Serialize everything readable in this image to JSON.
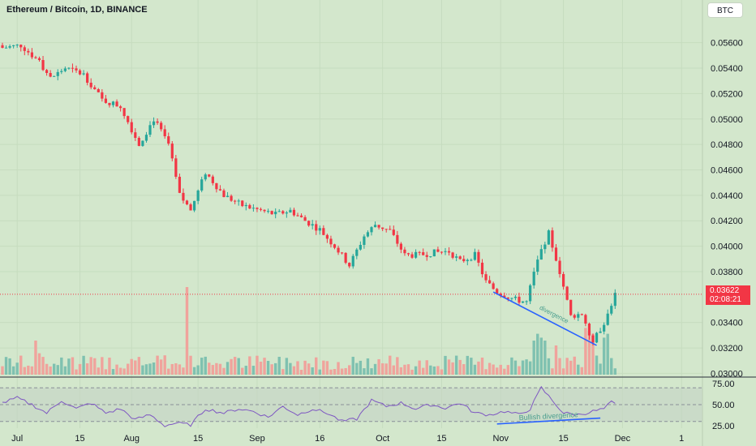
{
  "header": {
    "title": "Ethereum / Bitcoin, 1D, BINANCE",
    "currency_button": "BTC"
  },
  "last_price": {
    "price": "0.03622",
    "countdown": "02:08:21",
    "value": 0.03622
  },
  "annotations": {
    "price_divergence": "divergence",
    "rsi_divergence": "Bullish divergence"
  },
  "colors": {
    "up": "#26a69a",
    "down": "#f23645",
    "up_vol": "#7fc1b0",
    "down_vol": "#f0a39c",
    "rsi": "#7e57c2",
    "divergence_line": "#2962ff",
    "background": "#d3e7cc"
  },
  "chart_data": [
    {
      "type": "candlestick",
      "title": "Ethereum / Bitcoin, 1D, BINANCE",
      "x_axis_labels": [
        "Jul",
        "15",
        "Aug",
        "15",
        "Sep",
        "16",
        "Oct",
        "15",
        "Nov",
        "15",
        "Dec",
        "1"
      ],
      "y_axis_labels": [
        "0.05600",
        "0.05400",
        "0.05200",
        "0.05000",
        "0.04800",
        "0.04600",
        "0.04400",
        "0.04200",
        "0.04000",
        "0.03800",
        "0.03400",
        "0.03200",
        "0.03000"
      ],
      "ylim": [
        0.0299,
        0.0577
      ],
      "dates": [
        "2022-06-27",
        "2022-11-23"
      ],
      "close_waypoints": [
        [
          0,
          0.0556
        ],
        [
          5,
          0.0558
        ],
        [
          10,
          0.0545
        ],
        [
          13,
          0.0532
        ],
        [
          17,
          0.054
        ],
        [
          22,
          0.0535
        ],
        [
          27,
          0.0515
        ],
        [
          32,
          0.051
        ],
        [
          37,
          0.048
        ],
        [
          41,
          0.05
        ],
        [
          45,
          0.048
        ],
        [
          48,
          0.044
        ],
        [
          51,
          0.0428
        ],
        [
          55,
          0.0458
        ],
        [
          60,
          0.044
        ],
        [
          65,
          0.0432
        ],
        [
          70,
          0.0428
        ],
        [
          74,
          0.0425
        ],
        [
          78,
          0.0428
        ],
        [
          82,
          0.042
        ],
        [
          86,
          0.0413
        ],
        [
          90,
          0.04
        ],
        [
          94,
          0.0385
        ],
        [
          98,
          0.0408
        ],
        [
          101,
          0.0417
        ],
        [
          105,
          0.0412
        ],
        [
          109,
          0.0393
        ],
        [
          113,
          0.0393
        ],
        [
          117,
          0.0395
        ],
        [
          121,
          0.0396
        ],
        [
          124,
          0.0388
        ],
        [
          128,
          0.0393
        ],
        [
          131,
          0.0372
        ],
        [
          134,
          0.0364
        ],
        [
          139,
          0.0358
        ],
        [
          142,
          0.0356
        ],
        [
          145,
          0.039
        ],
        [
          148,
          0.041
        ],
        [
          151,
          0.038
        ],
        [
          154,
          0.0345
        ],
        [
          157,
          0.0347
        ],
        [
          160,
          0.0325
        ],
        [
          163,
          0.034
        ],
        [
          166,
          0.0362
        ]
      ],
      "volume_spikes": [
        [
          9,
          0.35
        ],
        [
          10,
          0.22
        ],
        [
          50,
          0.9
        ],
        [
          144,
          0.35
        ],
        [
          145,
          0.42
        ],
        [
          146,
          0.38
        ],
        [
          147,
          0.35
        ],
        [
          150,
          0.3
        ],
        [
          158,
          0.48
        ],
        [
          159,
          0.45
        ],
        [
          160,
          0.42
        ],
        [
          163,
          0.38
        ],
        [
          164,
          0.42
        ]
      ],
      "divergence_price": {
        "from": [
          133,
          0.0364
        ],
        "to": [
          161,
          0.0322
        ],
        "label": "divergence"
      }
    },
    {
      "type": "line",
      "name": "RSI",
      "y_axis_labels": [
        "75.00",
        "50.00",
        "25.00"
      ],
      "ylim": [
        22,
        78
      ],
      "levels": [
        70,
        50,
        30
      ],
      "rsi_waypoints": [
        [
          0,
          52
        ],
        [
          4,
          58
        ],
        [
          8,
          50
        ],
        [
          12,
          40
        ],
        [
          16,
          55
        ],
        [
          20,
          45
        ],
        [
          24,
          52
        ],
        [
          28,
          40
        ],
        [
          32,
          45
        ],
        [
          36,
          32
        ],
        [
          40,
          38
        ],
        [
          44,
          25
        ],
        [
          47,
          28
        ],
        [
          51,
          26
        ],
        [
          55,
          45
        ],
        [
          60,
          40
        ],
        [
          64,
          45
        ],
        [
          68,
          42
        ],
        [
          72,
          35
        ],
        [
          76,
          48
        ],
        [
          80,
          38
        ],
        [
          84,
          45
        ],
        [
          88,
          40
        ],
        [
          92,
          30
        ],
        [
          96,
          33
        ],
        [
          100,
          55
        ],
        [
          104,
          48
        ],
        [
          108,
          52
        ],
        [
          112,
          45
        ],
        [
          116,
          50
        ],
        [
          120,
          46
        ],
        [
          124,
          52
        ],
        [
          128,
          40
        ],
        [
          132,
          38
        ],
        [
          136,
          42
        ],
        [
          140,
          38
        ],
        [
          143,
          45
        ],
        [
          146,
          70
        ],
        [
          149,
          55
        ],
        [
          152,
          40
        ],
        [
          156,
          38
        ],
        [
          160,
          42
        ],
        [
          163,
          45
        ],
        [
          165,
          53
        ],
        [
          166,
          50
        ]
      ],
      "divergence_rsi": {
        "from": [
          134,
          27
        ],
        "to": [
          162,
          34
        ],
        "label": "Bullish divergence"
      }
    }
  ]
}
